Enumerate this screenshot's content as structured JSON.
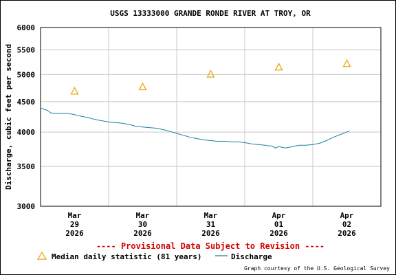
{
  "chart_data": {
    "type": "line",
    "title": "USGS 13333000 GRANDE RONDE RIVER AT TROY, OR",
    "ylabel": "Discharge, cubic feet per second",
    "xlabel": "",
    "y_scale": "log",
    "ylim": [
      3000,
      6000
    ],
    "y_ticks": [
      {
        "value": 3000,
        "label": "3000"
      },
      {
        "value": 3500,
        "label": "3500"
      },
      {
        "value": 4000,
        "label": "4000"
      },
      {
        "value": 4500,
        "label": "4500"
      },
      {
        "value": 5000,
        "label": "5000"
      },
      {
        "value": 5500,
        "label": "5500"
      },
      {
        "value": 6000,
        "label": "6000"
      }
    ],
    "x_ticks": [
      {
        "day": 0.5,
        "month": "Mar",
        "date": "29",
        "year": "2026"
      },
      {
        "day": 1.5,
        "month": "Mar",
        "date": "30",
        "year": "2026"
      },
      {
        "day": 2.5,
        "month": "Mar",
        "date": "31",
        "year": "2026"
      },
      {
        "day": 3.5,
        "month": "Apr",
        "date": "01",
        "year": "2026"
      },
      {
        "day": 4.5,
        "month": "Apr",
        "date": "02",
        "year": "2026"
      }
    ],
    "xlim": [
      0,
      5
    ],
    "grid": true,
    "series": [
      {
        "name": "Median daily statistic (81 years)",
        "kind": "marker",
        "marker": "triangle",
        "color": "#e8a000",
        "points": [
          {
            "date": "2026-03-29",
            "day": 0.5,
            "value": 4690
          },
          {
            "date": "2026-03-30",
            "day": 1.5,
            "value": 4770
          },
          {
            "date": "2026-03-31",
            "day": 2.5,
            "value": 5010
          },
          {
            "date": "2026-04-01",
            "day": 3.5,
            "value": 5150
          },
          {
            "date": "2026-04-02",
            "day": 4.5,
            "value": 5220
          }
        ]
      },
      {
        "name": "Discharge",
        "kind": "line",
        "color": "#1a7fa0",
        "points": [
          {
            "day": 0.0,
            "value": 4390
          },
          {
            "day": 0.05,
            "value": 4370
          },
          {
            "day": 0.1,
            "value": 4350
          },
          {
            "day": 0.15,
            "value": 4310
          },
          {
            "day": 0.2,
            "value": 4300
          },
          {
            "day": 0.3,
            "value": 4300
          },
          {
            "day": 0.4,
            "value": 4300
          },
          {
            "day": 0.5,
            "value": 4280
          },
          {
            "day": 0.6,
            "value": 4250
          },
          {
            "day": 0.7,
            "value": 4230
          },
          {
            "day": 0.8,
            "value": 4200
          },
          {
            "day": 0.9,
            "value": 4180
          },
          {
            "day": 1.0,
            "value": 4160
          },
          {
            "day": 1.1,
            "value": 4150
          },
          {
            "day": 1.2,
            "value": 4140
          },
          {
            "day": 1.3,
            "value": 4120
          },
          {
            "day": 1.4,
            "value": 4090
          },
          {
            "day": 1.5,
            "value": 4080
          },
          {
            "day": 1.6,
            "value": 4070
          },
          {
            "day": 1.7,
            "value": 4060
          },
          {
            "day": 1.8,
            "value": 4040
          },
          {
            "day": 1.9,
            "value": 4010
          },
          {
            "day": 2.0,
            "value": 3980
          },
          {
            "day": 2.1,
            "value": 3950
          },
          {
            "day": 2.2,
            "value": 3920
          },
          {
            "day": 2.3,
            "value": 3900
          },
          {
            "day": 2.4,
            "value": 3880
          },
          {
            "day": 2.5,
            "value": 3870
          },
          {
            "day": 2.6,
            "value": 3860
          },
          {
            "day": 2.7,
            "value": 3860
          },
          {
            "day": 2.8,
            "value": 3850
          },
          {
            "day": 2.9,
            "value": 3850
          },
          {
            "day": 3.0,
            "value": 3840
          },
          {
            "day": 3.1,
            "value": 3820
          },
          {
            "day": 3.2,
            "value": 3810
          },
          {
            "day": 3.3,
            "value": 3800
          },
          {
            "day": 3.35,
            "value": 3790
          },
          {
            "day": 3.4,
            "value": 3790
          },
          {
            "day": 3.45,
            "value": 3760
          },
          {
            "day": 3.5,
            "value": 3780
          },
          {
            "day": 3.6,
            "value": 3760
          },
          {
            "day": 3.7,
            "value": 3780
          },
          {
            "day": 3.8,
            "value": 3800
          },
          {
            "day": 3.9,
            "value": 3800
          },
          {
            "day": 4.0,
            "value": 3810
          },
          {
            "day": 4.1,
            "value": 3830
          },
          {
            "day": 4.2,
            "value": 3870
          },
          {
            "day": 4.3,
            "value": 3920
          },
          {
            "day": 4.4,
            "value": 3960
          },
          {
            "day": 4.5,
            "value": 4000
          },
          {
            "day": 4.54,
            "value": 4020
          }
        ]
      }
    ],
    "provisional_note": "---- Provisional Data Subject to Revision ----",
    "legend": {
      "placement": "bottom",
      "median_label": "Median daily statistic (81 years)",
      "discharge_label": "Discharge"
    },
    "credit": "Graph courtesy of the U.S. Geological Survey",
    "colors": {
      "grid": "#c8c8c8",
      "axis": "#000000",
      "median": "#e8a000",
      "discharge": "#1a7fa0",
      "provisional": "#d40000"
    }
  }
}
